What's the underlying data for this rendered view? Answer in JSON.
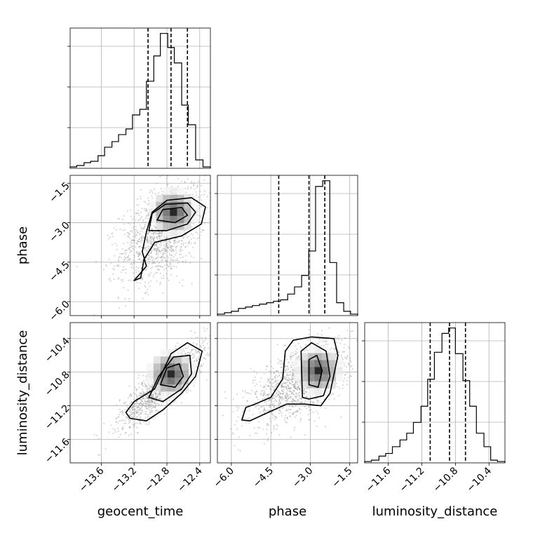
{
  "chart_data": {
    "type": "corner",
    "parameters": [
      "geocent_time",
      "phase",
      "luminosity_distance"
    ],
    "axis_labels": {
      "geocent_time": "geocent_time",
      "phase": "phase",
      "luminosity_distance": "luminosity_distance"
    },
    "ranges": {
      "geocent_time": [
        -13.98,
        -12.27
      ],
      "phase": [
        -6.53,
        -1.2
      ],
      "luminosity_distance": [
        -11.88,
        -10.21
      ]
    },
    "ticks": {
      "geocent_time": [
        "−13.6",
        "−13.2",
        "−12.8",
        "−12.4"
      ],
      "phase": [
        "−6.0",
        "−4.5",
        "−3.0",
        "−1.5"
      ],
      "luminosity_distance": [
        "−11.6",
        "−11.2",
        "−10.8",
        "−10.4"
      ]
    },
    "tick_values": {
      "geocent_time": [
        -13.6,
        -13.2,
        -12.8,
        -12.4
      ],
      "phase": [
        -6.0,
        -4.5,
        -3.0,
        -1.5
      ],
      "luminosity_distance": [
        -11.6,
        -11.2,
        -10.8,
        -10.4
      ]
    },
    "quantiles": {
      "geocent_time": [
        -13.03,
        -12.75,
        -12.55
      ],
      "phase": [
        -4.2,
        -3.05,
        -2.45
      ],
      "luminosity_distance": [
        -11.1,
        -10.87,
        -10.68
      ]
    },
    "histograms": {
      "geocent_time": {
        "edges": [
          -13.98,
          -13.9,
          -13.81,
          -13.73,
          -13.64,
          -13.56,
          -13.47,
          -13.39,
          -13.3,
          -13.22,
          -13.13,
          -13.05,
          -12.96,
          -12.88,
          -12.79,
          -12.71,
          -12.62,
          -12.54,
          -12.45,
          -12.36,
          -12.27
        ],
        "counts": [
          1,
          2,
          4,
          5,
          9,
          15,
          19,
          24,
          28,
          38,
          42,
          62,
          80,
          96,
          86,
          75,
          45,
          31,
          6,
          1
        ]
      },
      "phase": {
        "edges": [
          -6.53,
          -6.26,
          -6.0,
          -5.73,
          -5.46,
          -5.2,
          -4.93,
          -4.66,
          -4.4,
          -4.13,
          -3.86,
          -3.6,
          -3.33,
          -3.06,
          -2.8,
          -2.53,
          -2.26,
          -2.0,
          -1.73,
          -1.47,
          -1.2
        ],
        "counts": [
          1,
          2,
          3,
          5,
          6,
          7,
          8,
          9,
          10,
          11,
          15,
          20,
          28,
          45,
          90,
          94,
          37,
          9,
          3,
          1
        ]
      },
      "luminosity_distance": {
        "edges": [
          -11.88,
          -11.8,
          -11.71,
          -11.63,
          -11.55,
          -11.46,
          -11.38,
          -11.3,
          -11.21,
          -11.13,
          -11.05,
          -10.96,
          -10.88,
          -10.8,
          -10.71,
          -10.63,
          -10.55,
          -10.46,
          -10.38,
          -10.3,
          -10.21
        ],
        "counts": [
          1,
          2,
          5,
          7,
          12,
          17,
          22,
          30,
          42,
          62,
          82,
          96,
          100,
          81,
          61,
          42,
          22,
          12,
          2,
          1
        ]
      }
    },
    "joint": [
      {
        "x": "geocent_time",
        "y": "phase",
        "mean": [
          -12.85,
          -3.35
        ],
        "sd": [
          0.26,
          0.95
        ],
        "tilt": 0.45,
        "peak": [
          -12.72,
          -2.6
        ],
        "contours": [
          [
            [
              -13.2,
              -5.2
            ],
            [
              -13.05,
              -4.65
            ],
            [
              -13.1,
              -4.1
            ],
            [
              -13.05,
              -3.35
            ],
            [
              -12.98,
              -2.6
            ],
            [
              -12.8,
              -2.15
            ],
            [
              -12.5,
              -2.05
            ],
            [
              -12.33,
              -2.4
            ],
            [
              -12.38,
              -3.05
            ],
            [
              -12.62,
              -3.5
            ],
            [
              -12.95,
              -3.75
            ],
            [
              -13.08,
              -4.4
            ],
            [
              -13.12,
              -5.1
            ]
          ],
          [
            [
              -13.02,
              -3.3
            ],
            [
              -12.98,
              -2.65
            ],
            [
              -12.82,
              -2.3
            ],
            [
              -12.55,
              -2.25
            ],
            [
              -12.45,
              -2.6
            ],
            [
              -12.55,
              -3.05
            ],
            [
              -12.8,
              -3.3
            ]
          ],
          [
            [
              -12.92,
              -2.9
            ],
            [
              -12.85,
              -2.5
            ],
            [
              -12.62,
              -2.42
            ],
            [
              -12.55,
              -2.72
            ],
            [
              -12.7,
              -3.0
            ]
          ]
        ]
      },
      {
        "x": "geocent_time",
        "y": "luminosity_distance",
        "mean": [
          -12.85,
          -10.95
        ],
        "sd": [
          0.26,
          0.24
        ],
        "tilt": 0.85,
        "peak": [
          -12.75,
          -10.82
        ],
        "contours": [
          [
            [
              -13.3,
              -11.28
            ],
            [
              -13.2,
              -11.15
            ],
            [
              -12.95,
              -11.0
            ],
            [
              -12.75,
              -10.58
            ],
            [
              -12.55,
              -10.45
            ],
            [
              -12.37,
              -10.55
            ],
            [
              -12.45,
              -10.85
            ],
            [
              -12.62,
              -11.05
            ],
            [
              -12.85,
              -11.25
            ],
            [
              -13.05,
              -11.38
            ],
            [
              -13.25,
              -11.35
            ]
          ],
          [
            [
              -13.02,
              -11.1
            ],
            [
              -12.9,
              -10.85
            ],
            [
              -12.72,
              -10.62
            ],
            [
              -12.52,
              -10.6
            ],
            [
              -12.5,
              -10.82
            ],
            [
              -12.62,
              -11.0
            ],
            [
              -12.85,
              -11.15
            ]
          ],
          [
            [
              -12.88,
              -10.95
            ],
            [
              -12.8,
              -10.75
            ],
            [
              -12.65,
              -10.7
            ],
            [
              -12.6,
              -10.85
            ],
            [
              -12.7,
              -10.98
            ]
          ]
        ]
      },
      {
        "x": "phase",
        "y": "luminosity_distance",
        "mean": [
          -3.4,
          -10.92
        ],
        "sd": [
          0.95,
          0.24
        ],
        "tilt": 0.6,
        "peak": [
          -2.7,
          -10.78
        ],
        "contours": [
          [
            [
              -5.6,
              -11.37
            ],
            [
              -5.45,
              -11.22
            ],
            [
              -5.1,
              -11.18
            ],
            [
              -4.5,
              -11.1
            ],
            [
              -4.05,
              -10.88
            ],
            [
              -3.95,
              -10.55
            ],
            [
              -3.65,
              -10.42
            ],
            [
              -2.95,
              -10.38
            ],
            [
              -2.1,
              -10.4
            ],
            [
              -1.95,
              -10.6
            ],
            [
              -2.25,
              -11.05
            ],
            [
              -2.6,
              -11.2
            ],
            [
              -3.2,
              -11.18
            ],
            [
              -3.9,
              -11.18
            ],
            [
              -4.6,
              -11.28
            ],
            [
              -5.3,
              -11.38
            ]
          ],
          [
            [
              -3.3,
              -11.1
            ],
            [
              -3.35,
              -10.55
            ],
            [
              -2.95,
              -10.45
            ],
            [
              -2.4,
              -10.55
            ],
            [
              -2.25,
              -10.85
            ],
            [
              -2.5,
              -11.08
            ],
            [
              -3.05,
              -11.12
            ]
          ],
          [
            [
              -3.05,
              -10.95
            ],
            [
              -3.05,
              -10.65
            ],
            [
              -2.75,
              -10.6
            ],
            [
              -2.55,
              -10.78
            ],
            [
              -2.7,
              -10.98
            ]
          ]
        ]
      }
    ],
    "grid": true
  }
}
